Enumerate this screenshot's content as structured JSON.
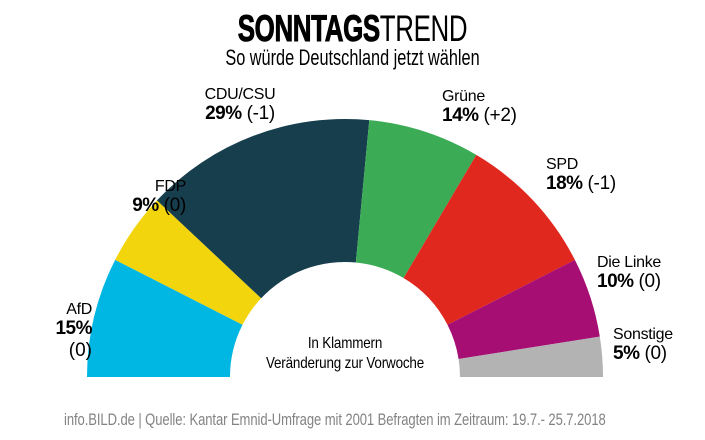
{
  "header": {
    "title_bold": "SONNTAGS",
    "title_light": "TREND",
    "subtitle": "So würde Deutschland jetzt wählen"
  },
  "chart_data": {
    "type": "pie",
    "variant": "semicircle-donut",
    "title": "Sonntagstrend",
    "subtitle": "So würde Deutschland jetzt wählen",
    "unit": "%",
    "categories": [
      "AfD",
      "FDP",
      "CDU/CSU",
      "Grüne",
      "SPD",
      "Die Linke",
      "Sonstige"
    ],
    "values": [
      15,
      9,
      29,
      14,
      18,
      10,
      5
    ],
    "changes_vs_previous_week": [
      0,
      0,
      -1,
      2,
      -1,
      0,
      0
    ],
    "value_labels": [
      "15%",
      "9%",
      "29%",
      "14%",
      "18%",
      "10%",
      "5%"
    ],
    "change_labels": [
      "(0)",
      "(0)",
      "(-1)",
      "(+2)",
      "(-1)",
      "(0)",
      "(0)"
    ],
    "colors": [
      "#00B6E2",
      "#F2D50D",
      "#173E4D",
      "#3BAC55",
      "#E0281E",
      "#A60E73",
      "#B4B3B3"
    ],
    "slugs": [
      "afd",
      "fdp",
      "cdu-csu",
      "gruene",
      "spd",
      "die-linke",
      "sonstige"
    ],
    "legend_position": "around",
    "grid": false
  },
  "center_note": {
    "line1": "In Klammern",
    "line2": "Veränderung zur Vorwoche"
  },
  "footer": {
    "source": "info.BILD.de | Quelle: Kantar Emnid-Umfrage mit 2001 Befragten im Zeitraum: 19.7.- 25.7.2018"
  }
}
